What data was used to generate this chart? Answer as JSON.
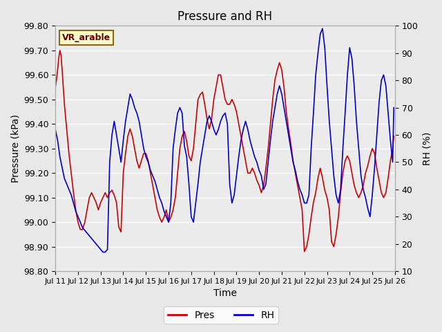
{
  "title": "Pressure and RH",
  "xlabel": "Time",
  "ylabel_left": "Pressure (kPa)",
  "ylabel_right": "RH (%)",
  "annotation": "VR_arable",
  "annotation_bg": "#ffffcc",
  "annotation_border": "#8B6914",
  "annotation_text_color": "#660000",
  "xlim_start": 11,
  "xlim_end": 26,
  "ylim_left": [
    98.8,
    99.8
  ],
  "ylim_right": [
    10,
    100
  ],
  "yticks_left": [
    98.8,
    98.9,
    99.0,
    99.1,
    99.2,
    99.3,
    99.4,
    99.5,
    99.6,
    99.7,
    99.8
  ],
  "yticks_right": [
    10,
    20,
    30,
    40,
    50,
    60,
    70,
    80,
    90,
    100
  ],
  "xtick_labels": [
    "Jul 11",
    "Jul 12",
    "Jul 13",
    "Jul 14",
    "Jul 15",
    "Jul 16",
    "Jul 17",
    "Jul 18",
    "Jul 19",
    "Jul 20",
    "Jul 21",
    "Jul 22",
    "Jul 23",
    "Jul 24",
    "Jul 25",
    "Jul 26"
  ],
  "background_color": "#e8e8e8",
  "plot_bg_color": "#ebebeb",
  "grid_color": "#ffffff",
  "line_color_pres": "#cc0000",
  "line_color_rh": "#0000cc",
  "line_width": 1.2,
  "pres_x": [
    11.0,
    11.05,
    11.1,
    11.15,
    11.2,
    11.25,
    11.3,
    11.35,
    11.4,
    11.5,
    11.6,
    11.7,
    11.8,
    11.9,
    12.0,
    12.1,
    12.2,
    12.3,
    12.4,
    12.5,
    12.6,
    12.7,
    12.8,
    12.9,
    13.0,
    13.1,
    13.2,
    13.3,
    13.4,
    13.5,
    13.6,
    13.7,
    13.8,
    13.9,
    14.0,
    14.1,
    14.2,
    14.3,
    14.4,
    14.5,
    14.6,
    14.7,
    14.8,
    14.9,
    15.0,
    15.1,
    15.2,
    15.3,
    15.4,
    15.5,
    15.6,
    15.7,
    15.8,
    15.9,
    16.0,
    16.1,
    16.2,
    16.3,
    16.4,
    16.5,
    16.6,
    16.7,
    16.8,
    16.9,
    17.0,
    17.1,
    17.2,
    17.3,
    17.4,
    17.5,
    17.6,
    17.7,
    17.8,
    17.9,
    18.0,
    18.1,
    18.2,
    18.3,
    18.4,
    18.5,
    18.6,
    18.7,
    18.8,
    18.9,
    19.0,
    19.1,
    19.2,
    19.3,
    19.4,
    19.5,
    19.6,
    19.7,
    19.8,
    19.9,
    20.0,
    20.1,
    20.2,
    20.3,
    20.4,
    20.5,
    20.6,
    20.7,
    20.8,
    20.9,
    21.0,
    21.1,
    21.2,
    21.3,
    21.4,
    21.5,
    21.6,
    21.7,
    21.8,
    21.9,
    22.0,
    22.1,
    22.2,
    22.3,
    22.4,
    22.5,
    22.6,
    22.7,
    22.8,
    22.9,
    23.0,
    23.1,
    23.2,
    23.3,
    23.4,
    23.5,
    23.6,
    23.7,
    23.8,
    23.9,
    24.0,
    24.1,
    24.2,
    24.3,
    24.4,
    24.5,
    24.6,
    24.7,
    24.8,
    24.9,
    25.0,
    25.1,
    25.2,
    25.3,
    25.4,
    25.5,
    25.6,
    25.7,
    25.8,
    25.9,
    25.95
  ],
  "pres_y": [
    99.55,
    99.58,
    99.62,
    99.67,
    99.7,
    99.68,
    99.62,
    99.55,
    99.48,
    99.38,
    99.28,
    99.2,
    99.12,
    99.05,
    99.0,
    98.97,
    98.97,
    99.0,
    99.05,
    99.1,
    99.12,
    99.1,
    99.08,
    99.05,
    99.08,
    99.1,
    99.12,
    99.1,
    99.12,
    99.13,
    99.11,
    99.08,
    98.98,
    98.96,
    99.2,
    99.28,
    99.35,
    99.38,
    99.35,
    99.3,
    99.25,
    99.22,
    99.25,
    99.28,
    99.28,
    99.25,
    99.2,
    99.15,
    99.1,
    99.05,
    99.02,
    99.0,
    99.02,
    99.05,
    99.0,
    99.02,
    99.05,
    99.1,
    99.2,
    99.3,
    99.35,
    99.37,
    99.33,
    99.27,
    99.25,
    99.3,
    99.4,
    99.5,
    99.52,
    99.53,
    99.48,
    99.42,
    99.38,
    99.42,
    99.5,
    99.55,
    99.6,
    99.6,
    99.55,
    99.5,
    99.48,
    99.48,
    99.5,
    99.48,
    99.45,
    99.4,
    99.35,
    99.3,
    99.25,
    99.2,
    99.2,
    99.22,
    99.2,
    99.17,
    99.15,
    99.12,
    99.15,
    99.22,
    99.3,
    99.4,
    99.5,
    99.58,
    99.62,
    99.65,
    99.62,
    99.55,
    99.45,
    99.38,
    99.32,
    99.25,
    99.2,
    99.15,
    99.1,
    99.05,
    98.88,
    98.9,
    98.95,
    99.02,
    99.08,
    99.12,
    99.18,
    99.22,
    99.18,
    99.13,
    99.1,
    99.05,
    98.92,
    98.9,
    98.95,
    99.02,
    99.12,
    99.2,
    99.25,
    99.27,
    99.25,
    99.2,
    99.15,
    99.12,
    99.1,
    99.12,
    99.15,
    99.2,
    99.23,
    99.27,
    99.3,
    99.28,
    99.22,
    99.17,
    99.12,
    99.1,
    99.12,
    99.18,
    99.25,
    99.3,
    99.35
  ],
  "rh_x": [
    11.0,
    11.05,
    11.1,
    11.15,
    11.2,
    11.25,
    11.3,
    11.35,
    11.4,
    11.5,
    11.6,
    11.7,
    11.8,
    11.9,
    12.0,
    12.1,
    12.2,
    12.3,
    12.4,
    12.5,
    12.6,
    12.7,
    12.8,
    12.9,
    13.0,
    13.1,
    13.2,
    13.3,
    13.4,
    13.5,
    13.6,
    13.7,
    13.8,
    13.9,
    14.0,
    14.1,
    14.2,
    14.3,
    14.4,
    14.5,
    14.6,
    14.7,
    14.8,
    14.9,
    15.0,
    15.1,
    15.2,
    15.3,
    15.4,
    15.5,
    15.6,
    15.7,
    15.8,
    15.9,
    16.0,
    16.1,
    16.2,
    16.3,
    16.4,
    16.5,
    16.6,
    16.7,
    16.8,
    16.9,
    17.0,
    17.1,
    17.2,
    17.3,
    17.4,
    17.5,
    17.6,
    17.7,
    17.8,
    17.9,
    18.0,
    18.1,
    18.2,
    18.3,
    18.4,
    18.5,
    18.6,
    18.7,
    18.8,
    18.9,
    19.0,
    19.1,
    19.2,
    19.3,
    19.4,
    19.5,
    19.6,
    19.7,
    19.8,
    19.9,
    20.0,
    20.1,
    20.2,
    20.3,
    20.4,
    20.5,
    20.6,
    20.7,
    20.8,
    20.9,
    21.0,
    21.1,
    21.2,
    21.3,
    21.4,
    21.5,
    21.6,
    21.7,
    21.8,
    21.9,
    22.0,
    22.1,
    22.2,
    22.3,
    22.4,
    22.5,
    22.6,
    22.7,
    22.8,
    22.9,
    23.0,
    23.1,
    23.2,
    23.3,
    23.4,
    23.5,
    23.6,
    23.7,
    23.8,
    23.9,
    24.0,
    24.1,
    24.2,
    24.3,
    24.4,
    24.5,
    24.6,
    24.7,
    24.8,
    24.9,
    25.0,
    25.1,
    25.2,
    25.3,
    25.4,
    25.5,
    25.6,
    25.7,
    25.8,
    25.9,
    25.95
  ],
  "rh_y": [
    62,
    60,
    58,
    55,
    52,
    50,
    48,
    46,
    44,
    42,
    40,
    38,
    35,
    32,
    30,
    28,
    26,
    25,
    24,
    23,
    22,
    21,
    20,
    19,
    18,
    17,
    17,
    18,
    50,
    60,
    65,
    60,
    55,
    50,
    58,
    65,
    70,
    75,
    73,
    70,
    68,
    65,
    60,
    55,
    52,
    50,
    47,
    45,
    43,
    40,
    37,
    35,
    32,
    30,
    28,
    35,
    55,
    62,
    68,
    70,
    68,
    56,
    52,
    42,
    30,
    28,
    35,
    42,
    50,
    55,
    60,
    65,
    67,
    65,
    62,
    60,
    62,
    65,
    67,
    68,
    64,
    42,
    35,
    38,
    45,
    52,
    58,
    62,
    65,
    62,
    58,
    55,
    52,
    50,
    47,
    45,
    40,
    42,
    50,
    58,
    65,
    70,
    75,
    78,
    75,
    70,
    65,
    60,
    55,
    50,
    47,
    43,
    40,
    38,
    35,
    35,
    38,
    55,
    68,
    82,
    90,
    97,
    99,
    92,
    78,
    65,
    55,
    45,
    38,
    35,
    40,
    55,
    68,
    82,
    92,
    88,
    78,
    65,
    55,
    45,
    40,
    37,
    33,
    30,
    38,
    48,
    60,
    72,
    80,
    82,
    78,
    68,
    58,
    50,
    70
  ]
}
